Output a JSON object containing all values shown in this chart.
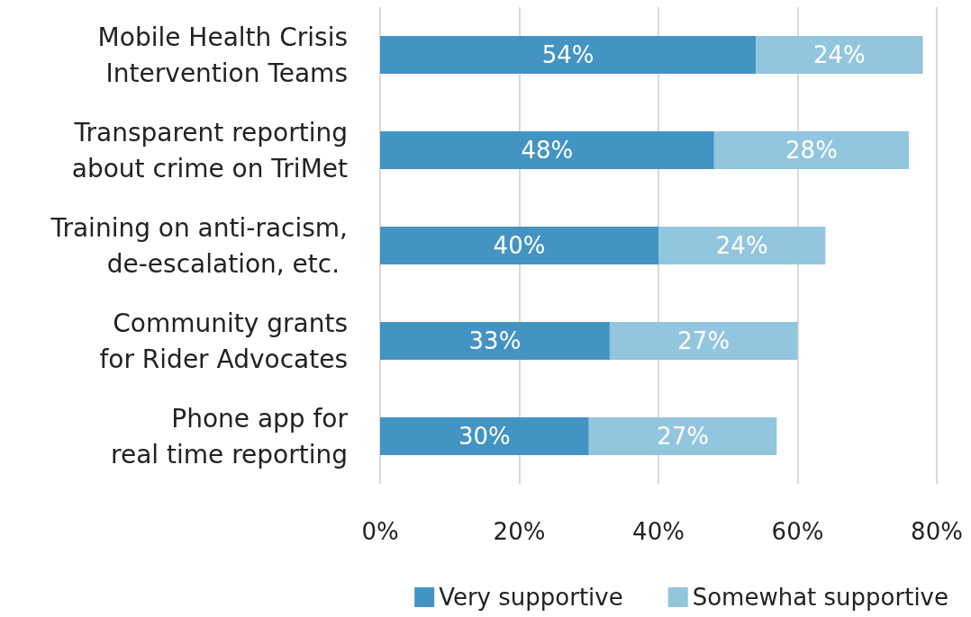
{
  "chart_data": {
    "type": "bar",
    "orientation": "horizontal",
    "stacked": true,
    "categories": [
      "Mobile Health Crisis\nIntervention Teams",
      "Transparent reporting\nabout crime on TriMet",
      "Training on anti-racism,\nde-escalation, etc. ",
      "Community grants\nfor Rider Advocates",
      "Phone app for\nreal time reporting"
    ],
    "series": [
      {
        "name": "Very supportive",
        "color": "#4393c3",
        "values": [
          54,
          48,
          40,
          33,
          30
        ],
        "value_labels": [
          "54%",
          "48%",
          "40%",
          "33%",
          "30%"
        ]
      },
      {
        "name": "Somewhat supportive",
        "color": "#92c5de",
        "values": [
          24,
          28,
          24,
          27,
          27
        ],
        "value_labels": [
          "24%",
          "28%",
          "24%",
          "27%",
          "27%"
        ]
      }
    ],
    "xlim": [
      0,
      80
    ],
    "xticks": [
      {
        "value": 0,
        "label": "0%"
      },
      {
        "value": 20,
        "label": "20%"
      },
      {
        "value": 40,
        "label": "40%"
      },
      {
        "value": 60,
        "label": "60%"
      },
      {
        "value": 80,
        "label": "80%"
      }
    ],
    "grid": "x",
    "legend": "bottom"
  }
}
